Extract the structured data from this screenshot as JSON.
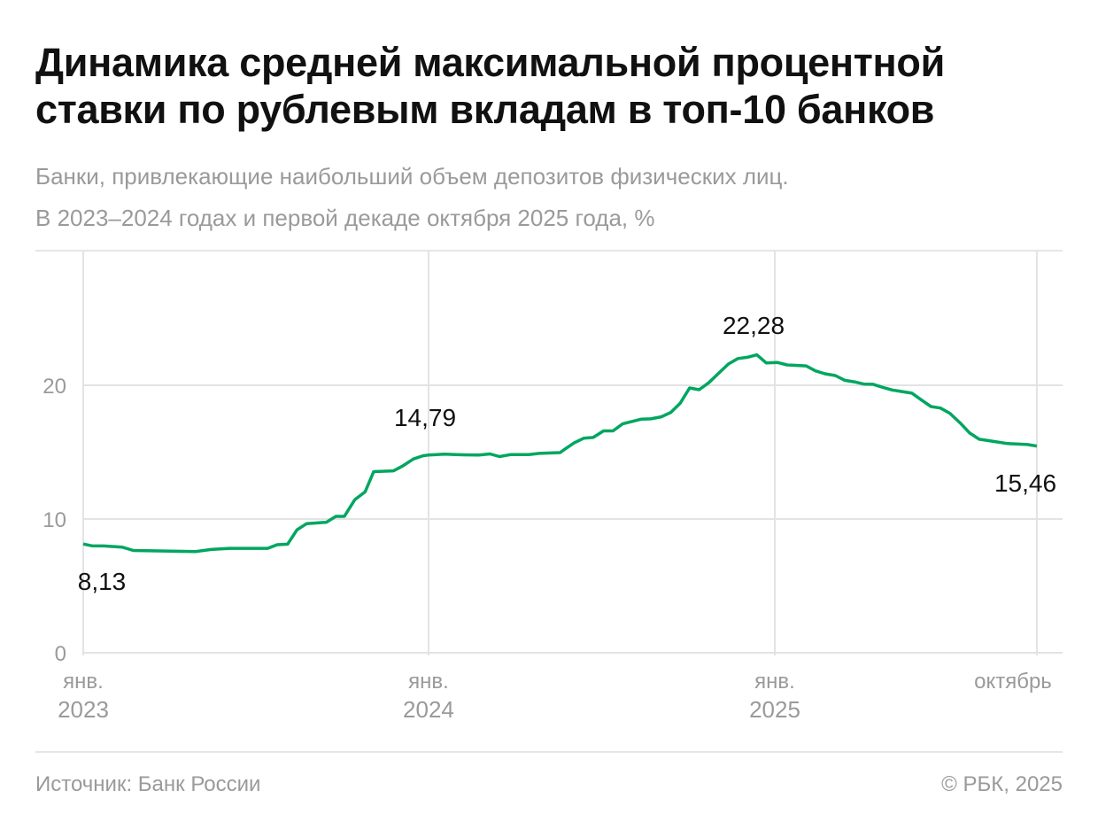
{
  "title": "Динамика средней максимальной процентной ставки по рублевым вкладам в топ-10 банков",
  "subtitle_lines": [
    "Банки, привлекающие наибольший объем депозитов физических лиц.",
    "В 2023–2024 годах и первой декаде октября 2025 года, %"
  ],
  "footer": {
    "source": "Источник: Банк России",
    "copyright": "© РБК, 2025"
  },
  "colors": {
    "line": "#00a660",
    "grid": "#e3e3e3",
    "axis_text": "#9a9a9a",
    "label_text": "#111111"
  },
  "chart_data": {
    "type": "line",
    "title": "Динамика средней максимальной процентной ставки по рублевым вкладам в топ-10 банков",
    "ylabel": "%",
    "ylim": [
      0,
      25
    ],
    "yticks": [
      0,
      10,
      20
    ],
    "grid": true,
    "xticks": [
      {
        "date": "2023-01-01",
        "label1": "янв.",
        "label2": "2023"
      },
      {
        "date": "2024-01-01",
        "label1": "янв.",
        "label2": "2024"
      },
      {
        "date": "2025-01-01",
        "label1": "янв.",
        "label2": "2025"
      },
      {
        "date": "2025-10-05",
        "label1": "октябрь",
        "label2": ""
      }
    ],
    "annotations": [
      {
        "date": "2023-01-01",
        "text": "8,13"
      },
      {
        "date": "2024-01-01",
        "text": "14,79"
      },
      {
        "date": "2024-12-13",
        "text": "22,28"
      },
      {
        "date": "2025-10-05",
        "text": "15,46"
      }
    ],
    "series": [
      {
        "points": [
          [
            "2023-01-01",
            8.13
          ],
          [
            "2023-01-10",
            8.0
          ],
          [
            "2023-01-23",
            7.99
          ],
          [
            "2023-02-11",
            7.9
          ],
          [
            "2023-02-23",
            7.65
          ],
          [
            "2023-04-30",
            7.57
          ],
          [
            "2023-05-16",
            7.72
          ],
          [
            "2023-06-05",
            7.81
          ],
          [
            "2023-07-15",
            7.81
          ],
          [
            "2023-07-25",
            8.08
          ],
          [
            "2023-08-05",
            8.12
          ],
          [
            "2023-08-15",
            9.2
          ],
          [
            "2023-08-25",
            9.65
          ],
          [
            "2023-09-15",
            9.76
          ],
          [
            "2023-09-25",
            10.2
          ],
          [
            "2023-10-04",
            10.2
          ],
          [
            "2023-10-15",
            11.44
          ],
          [
            "2023-10-26",
            12.04
          ],
          [
            "2023-11-04",
            13.54
          ],
          [
            "2023-11-25",
            13.6
          ],
          [
            "2023-12-05",
            13.98
          ],
          [
            "2023-12-16",
            14.49
          ],
          [
            "2023-12-26",
            14.73
          ],
          [
            "2024-01-01",
            14.79
          ],
          [
            "2024-01-18",
            14.85
          ],
          [
            "2024-02-06",
            14.8
          ],
          [
            "2024-02-23",
            14.78
          ],
          [
            "2024-03-06",
            14.87
          ],
          [
            "2024-03-16",
            14.67
          ],
          [
            "2024-03-28",
            14.82
          ],
          [
            "2024-04-16",
            14.82
          ],
          [
            "2024-04-27",
            14.91
          ],
          [
            "2024-05-19",
            14.97
          ],
          [
            "2024-05-24",
            15.22
          ],
          [
            "2024-06-03",
            15.7
          ],
          [
            "2024-06-13",
            16.04
          ],
          [
            "2024-06-23",
            16.1
          ],
          [
            "2024-07-04",
            16.59
          ],
          [
            "2024-07-14",
            16.59
          ],
          [
            "2024-07-24",
            17.11
          ],
          [
            "2024-08-13",
            17.47
          ],
          [
            "2024-08-23",
            17.49
          ],
          [
            "2024-09-03",
            17.64
          ],
          [
            "2024-09-13",
            17.97
          ],
          [
            "2024-09-23",
            18.66
          ],
          [
            "2024-10-03",
            19.8
          ],
          [
            "2024-10-13",
            19.67
          ],
          [
            "2024-10-23",
            20.18
          ],
          [
            "2024-11-03",
            20.93
          ],
          [
            "2024-11-13",
            21.59
          ],
          [
            "2024-11-23",
            22.0
          ],
          [
            "2024-12-03",
            22.09
          ],
          [
            "2024-12-13",
            22.28
          ],
          [
            "2024-12-23",
            21.67
          ],
          [
            "2025-01-04",
            21.7
          ],
          [
            "2025-01-14",
            21.52
          ],
          [
            "2025-02-03",
            21.45
          ],
          [
            "2025-02-13",
            21.08
          ],
          [
            "2025-02-23",
            20.86
          ],
          [
            "2025-03-06",
            20.73
          ],
          [
            "2025-03-16",
            20.37
          ],
          [
            "2025-03-26",
            20.26
          ],
          [
            "2025-04-05",
            20.09
          ],
          [
            "2025-04-15",
            20.07
          ],
          [
            "2025-04-25",
            19.85
          ],
          [
            "2025-05-05",
            19.65
          ],
          [
            "2025-05-26",
            19.41
          ],
          [
            "2025-06-05",
            18.9
          ],
          [
            "2025-06-15",
            18.41
          ],
          [
            "2025-06-25",
            18.3
          ],
          [
            "2025-07-05",
            17.91
          ],
          [
            "2025-07-16",
            17.18
          ],
          [
            "2025-07-26",
            16.43
          ],
          [
            "2025-08-05",
            15.97
          ],
          [
            "2025-08-15",
            15.86
          ],
          [
            "2025-09-04",
            15.64
          ],
          [
            "2025-09-25",
            15.57
          ],
          [
            "2025-10-05",
            15.46
          ]
        ]
      }
    ]
  }
}
